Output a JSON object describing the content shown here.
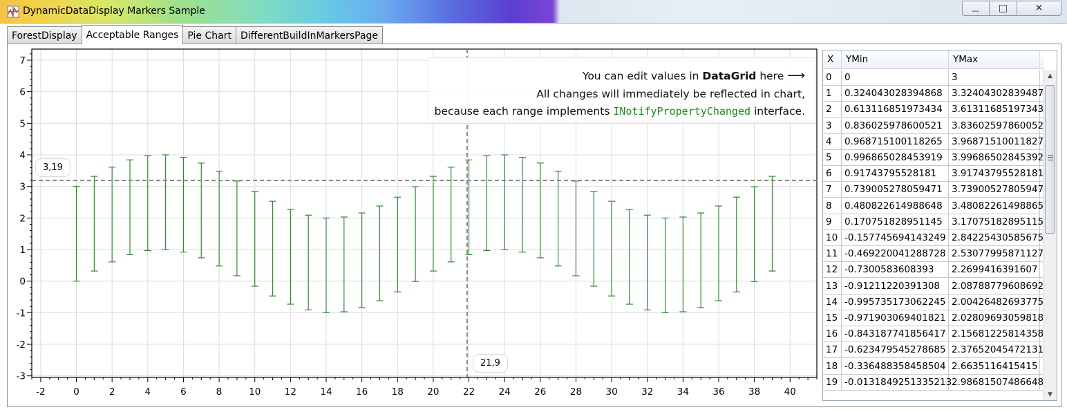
{
  "window": {
    "title": "DynamicDataDisplay Markers Sample",
    "minimize": "—",
    "maximize": "□",
    "close": "✕"
  },
  "tabs": [
    {
      "label": "ForestDisplay",
      "active": false
    },
    {
      "label": "Acceptable Ranges",
      "active": true
    },
    {
      "label": "Pie Chart",
      "active": false
    },
    {
      "label": "DifferentBuildInMarkersPage",
      "active": false
    }
  ],
  "hint": {
    "line1_prefix": "You can edit values in ",
    "line1_bold": "DataGrid",
    "line1_suffix": " here ",
    "arrow": "⟶",
    "line2": "All changes will immediately be reflected in chart,",
    "line3_prefix": "because each range implements ",
    "line3_code": "INotifyPropertyChanged",
    "line3_suffix": " interface."
  },
  "cursor": {
    "y_label": "3,19",
    "x_label": "21,9",
    "x": 21.9,
    "y": 3.19
  },
  "colors": {
    "range_bar": "#2e8b2e",
    "grid_line": "#dcdcdc",
    "cursor_line": "#888888",
    "accent_code": "#1a8a1a"
  },
  "chart_data": {
    "type": "error-bar range",
    "x_ticks": [
      "-2",
      "0",
      "2",
      "4",
      "6",
      "8",
      "10",
      "12",
      "14",
      "16",
      "18",
      "20",
      "22",
      "24",
      "26",
      "28",
      "30",
      "32",
      "34",
      "36",
      "38",
      "40"
    ],
    "y_ticks": [
      "-3",
      "-2",
      "-1",
      "0",
      "1",
      "2",
      "3",
      "4",
      "5",
      "6",
      "7"
    ],
    "xlim": [
      -2.5,
      41.5
    ],
    "ylim": [
      -3.05,
      7.35
    ],
    "x": [
      0,
      1,
      2,
      3,
      4,
      5,
      6,
      7,
      8,
      9,
      10,
      11,
      12,
      13,
      14,
      15,
      16,
      17,
      18,
      19,
      20,
      21,
      22,
      23,
      24,
      25,
      26,
      27,
      28,
      29,
      30,
      31,
      32,
      33,
      34,
      35,
      36,
      37,
      38,
      39
    ],
    "ymin": [
      0,
      0.32,
      0.61,
      0.84,
      0.97,
      1.0,
      0.92,
      0.74,
      0.48,
      0.17,
      -0.16,
      -0.47,
      -0.73,
      -0.91,
      -1.0,
      -0.97,
      -0.84,
      -0.62,
      -0.34,
      -0.01,
      0.32,
      0.61,
      0.84,
      0.97,
      1.0,
      0.92,
      0.74,
      0.48,
      0.17,
      -0.16,
      -0.47,
      -0.73,
      -0.91,
      -1.0,
      -0.97,
      -0.84,
      -0.62,
      -0.34,
      -0.01,
      0.32
    ],
    "ymax": [
      3,
      3.32,
      3.61,
      3.84,
      3.97,
      4.0,
      3.92,
      3.74,
      3.48,
      3.17,
      2.84,
      2.53,
      2.27,
      2.09,
      2.0,
      2.03,
      2.16,
      2.38,
      2.66,
      2.99,
      3.32,
      3.61,
      3.84,
      3.97,
      4.0,
      3.92,
      3.74,
      3.48,
      3.17,
      2.84,
      2.53,
      2.27,
      2.09,
      2.0,
      2.03,
      2.16,
      2.38,
      2.66,
      2.99,
      3.32
    ]
  },
  "grid": {
    "headers": {
      "x": "X",
      "ymin": "YMin",
      "ymax": "YMax"
    },
    "rows": [
      {
        "x": "0",
        "ymin": "0",
        "ymax": "3"
      },
      {
        "x": "1",
        "ymin": "0.324043028394868",
        "ymax": "3.32404302839487"
      },
      {
        "x": "2",
        "ymin": "0.613116851973434",
        "ymax": "3.61311685197343"
      },
      {
        "x": "3",
        "ymin": "0.836025978600521",
        "ymax": "3.83602597860052"
      },
      {
        "x": "4",
        "ymin": "0.968715100118265",
        "ymax": "3.96871510011827"
      },
      {
        "x": "5",
        "ymin": "0.996865028453919",
        "ymax": "3.99686502845392"
      },
      {
        "x": "6",
        "ymin": "0.91743795528181",
        "ymax": "3.91743795528181"
      },
      {
        "x": "7",
        "ymin": "0.739005278059471",
        "ymax": "3.73900527805947"
      },
      {
        "x": "8",
        "ymin": "0.480822614988648",
        "ymax": "3.48082261498865"
      },
      {
        "x": "9",
        "ymin": "0.170751828951145",
        "ymax": "3.17075182895115"
      },
      {
        "x": "10",
        "ymin": "-0.157745694143249",
        "ymax": "2.84225430585675"
      },
      {
        "x": "11",
        "ymin": "-0.469220041288728",
        "ymax": "2.53077995871127"
      },
      {
        "x": "12",
        "ymin": "-0.7300583608393",
        "ymax": "2.2699416391607"
      },
      {
        "x": "13",
        "ymin": "-0.91211220391308",
        "ymax": "2.08788779608692"
      },
      {
        "x": "14",
        "ymin": "-0.995735173062245",
        "ymax": "2.00426482693775"
      },
      {
        "x": "15",
        "ymin": "-0.971903069401821",
        "ymax": "2.02809693059818"
      },
      {
        "x": "16",
        "ymin": "-0.843187741856417",
        "ymax": "2.15681225814358"
      },
      {
        "x": "17",
        "ymin": "-0.623479545278685",
        "ymax": "2.37652045472131"
      },
      {
        "x": "18",
        "ymin": "-0.336488358458504",
        "ymax": "2.6635116415415"
      },
      {
        "x": "19",
        "ymin": "-0.0131849251335213",
        "ymax": "2.98681507486648"
      }
    ]
  }
}
